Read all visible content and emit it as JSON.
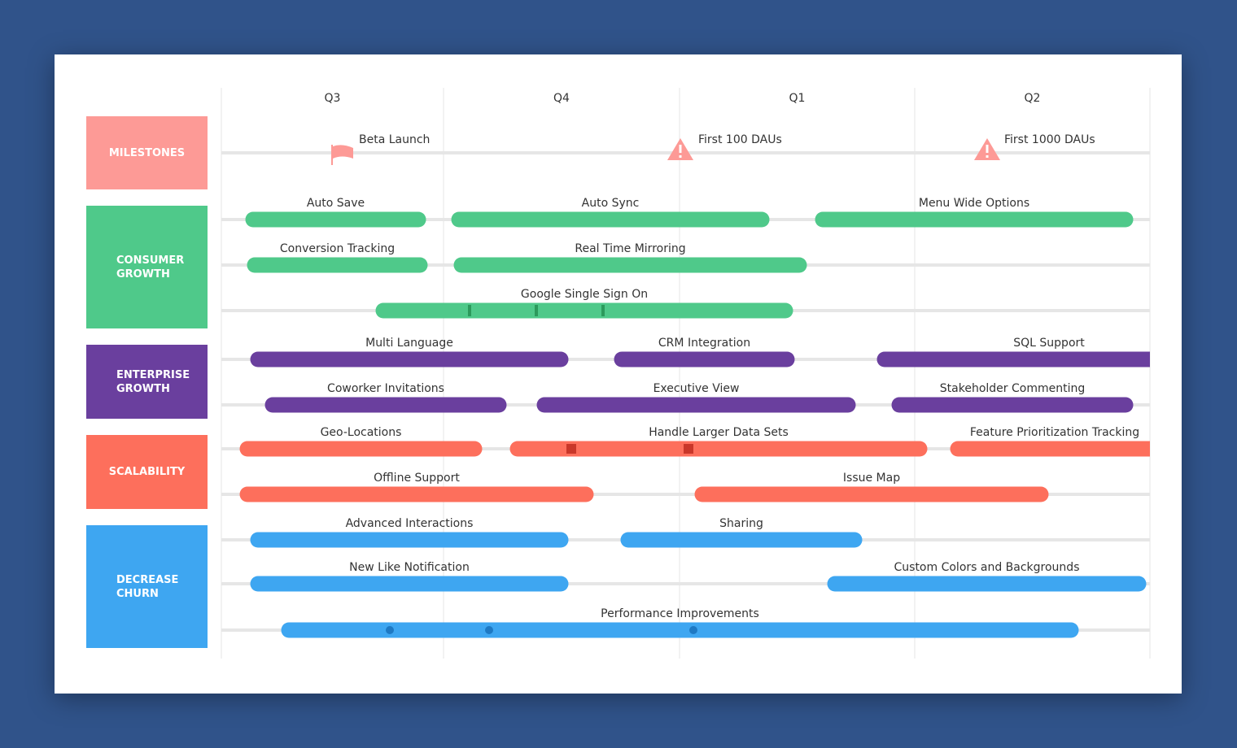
{
  "quarters": [
    "Q3",
    "Q4",
    "Q1",
    "Q2"
  ],
  "groups": [
    "MILESTONES",
    "CONSUMER GROWTH",
    "ENTERPRISE GROWTH",
    "SCALABILITY",
    "DECREASE CHURN"
  ],
  "milestones": [
    "Beta Launch",
    "First 100 DAUs",
    "First 1000 DAUs"
  ],
  "rows": [
    [
      "Auto Save",
      "Auto Sync",
      "Menu Wide Options"
    ],
    [
      "Conversion Tracking",
      "Real Time Mirroring"
    ],
    [
      "Google Single Sign On"
    ],
    [
      "Multi Language",
      "CRM Integration",
      "SQL Support"
    ],
    [
      "Coworker Invitations",
      "Executive View",
      "Stakeholder Commenting"
    ],
    [
      "Geo-Locations",
      "Handle Larger Data Sets",
      "Feature Prioritization Tracking"
    ],
    [
      "Offline Support",
      "Issue Map"
    ],
    [
      "Advanced Interactions",
      "Sharing"
    ],
    [
      "New Like Notification",
      "Custom Colors and Backgrounds"
    ],
    [
      "Performance Improvements"
    ]
  ]
}
